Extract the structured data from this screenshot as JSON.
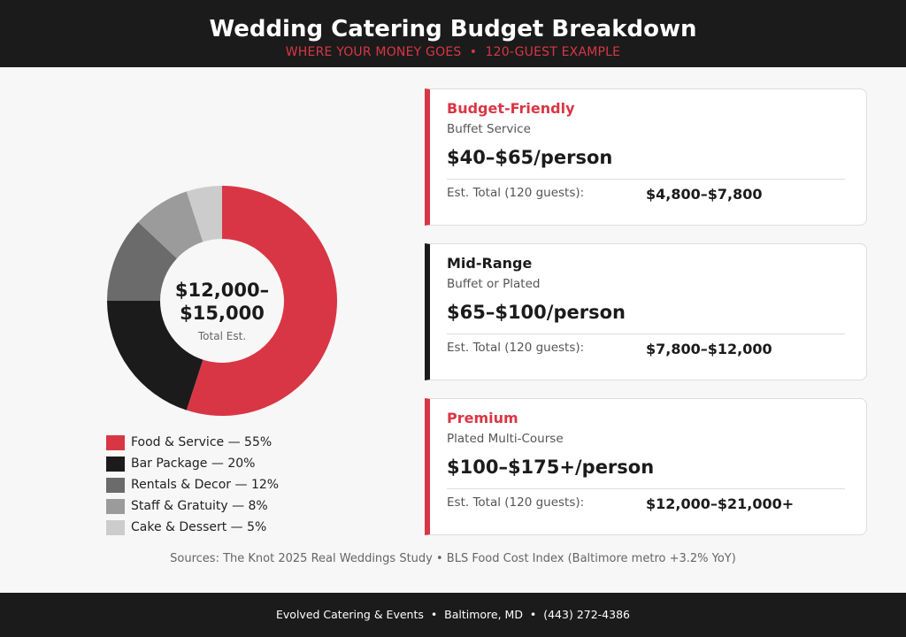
{
  "header": {
    "title": "Wedding Catering Budget Breakdown",
    "subtitle": "WHERE YOUR MONEY GOES  •  120-GUEST EXAMPLE"
  },
  "chart_data": {
    "type": "pie",
    "categories": [
      "Food & Service",
      "Bar Package",
      "Rentals & Decor",
      "Staff & Gratuity",
      "Cake & Dessert"
    ],
    "values": [
      55,
      20,
      12,
      8,
      5
    ],
    "colors": [
      "#d93645",
      "#1b1b1b",
      "#6b6b6b",
      "#9b9b9b",
      "#cccccc"
    ],
    "legend_labels": [
      "Food & Service — 55%",
      "Bar Package — 20%",
      "Rentals & Decor — 12%",
      "Staff & Gratuity — 8%",
      "Cake & Dessert — 5%"
    ],
    "legend": "bottom",
    "center_line1": "$12,000–",
    "center_line2": "$15,000",
    "center_label": "Total Est."
  },
  "tiers": [
    {
      "name": "Budget-Friendly",
      "service": "Buffet Service",
      "price": "$40–$65/person",
      "total_label": "Est. Total (120 guests):",
      "total": "$4,800–$7,800",
      "accent": "#d93645"
    },
    {
      "name": "Mid-Range",
      "service": "Buffet or Plated",
      "price": "$65–$100/person",
      "total_label": "Est. Total (120 guests):",
      "total": "$7,800–$12,000",
      "accent": "#1b1b1b"
    },
    {
      "name": "Premium",
      "service": "Plated Multi-Course",
      "price": "$100–$175+/person",
      "total_label": "Est. Total (120 guests):",
      "total": "$12,000–$21,000+",
      "accent": "#d93645"
    }
  ],
  "sources": "Sources: The Knot 2025 Real Weddings Study • BLS Food Cost Index (Baltimore metro +3.2% YoY)",
  "footer": "Evolved Catering & Events  •  Baltimore, MD  •  (443) 272-4386"
}
